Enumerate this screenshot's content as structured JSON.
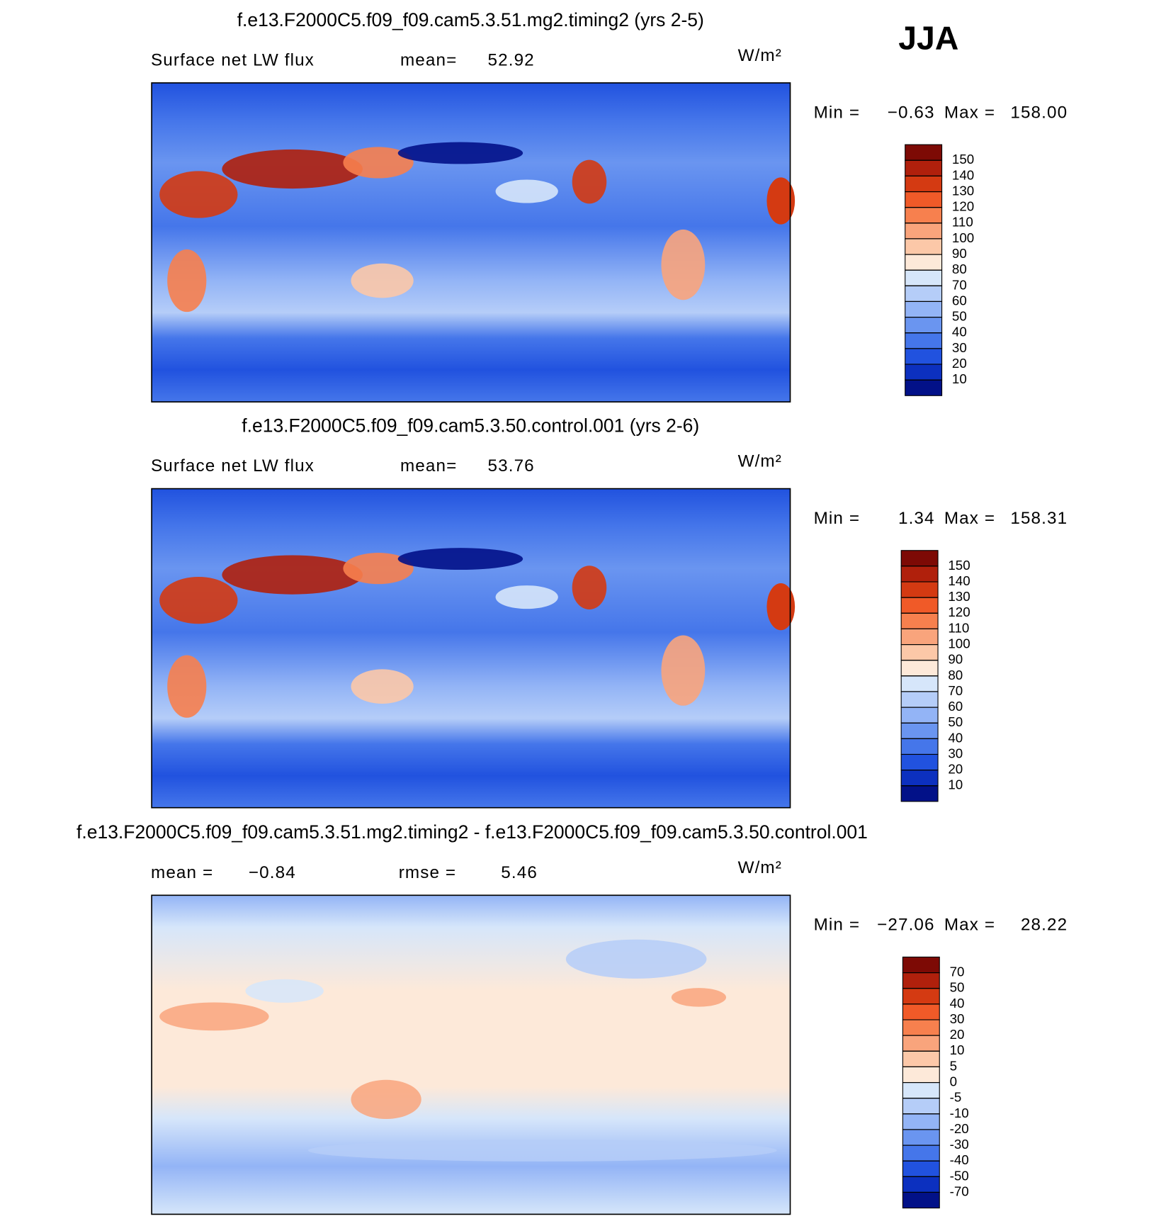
{
  "season": "JJA",
  "panels": [
    {
      "title": "f.e13.F2000C5.f09_f09.cam5.3.51.mg2.timing2 (yrs 2-5)",
      "field": "Surface net LW flux",
      "stats": [
        {
          "label": "mean=",
          "value": "52.92"
        }
      ],
      "units": "W/m²",
      "min_label": "Min =",
      "min": "−0.63",
      "max_label": "Max =",
      "max": "158.00",
      "colorbar": {
        "levels": [
          150,
          140,
          130,
          120,
          110,
          100,
          90,
          80,
          70,
          60,
          50,
          40,
          30,
          20,
          10
        ],
        "colors": [
          "#7d0a05",
          "#b0200c",
          "#d43a12",
          "#f05a28",
          "#f7804e",
          "#f9a47c",
          "#fcc8a8",
          "#fde9d9",
          "#d6e6fa",
          "#b5cdf8",
          "#93b4f6",
          "#6a95f0",
          "#4576ea",
          "#2152df",
          "#0c30bf",
          "#021188"
        ]
      }
    },
    {
      "title": "f.e13.F2000C5.f09_f09.cam5.3.50.control.001 (yrs 2-6)",
      "field": "Surface net LW flux",
      "stats": [
        {
          "label": "mean=",
          "value": "53.76"
        }
      ],
      "units": "W/m²",
      "min_label": "Min =",
      "min": "1.34",
      "max_label": "Max =",
      "max": "158.31",
      "colorbar": {
        "levels": [
          150,
          140,
          130,
          120,
          110,
          100,
          90,
          80,
          70,
          60,
          50,
          40,
          30,
          20,
          10
        ],
        "colors": [
          "#7d0a05",
          "#b0200c",
          "#d43a12",
          "#f05a28",
          "#f7804e",
          "#f9a47c",
          "#fcc8a8",
          "#fde9d9",
          "#d6e6fa",
          "#b5cdf8",
          "#93b4f6",
          "#6a95f0",
          "#4576ea",
          "#2152df",
          "#0c30bf",
          "#021188"
        ]
      }
    },
    {
      "title": "f.e13.F2000C5.f09_f09.cam5.3.51.mg2.timing2 - f.e13.F2000C5.f09_f09.cam5.3.50.control.001",
      "stats": [
        {
          "label": "mean =",
          "value": "−0.84"
        },
        {
          "label": "rmse =",
          "value": "5.46"
        }
      ],
      "units": "W/m²",
      "min_label": "Min =",
      "min": "−27.06",
      "max_label": "Max =",
      "max": "28.22",
      "colorbar": {
        "levels": [
          70,
          50,
          40,
          30,
          20,
          10,
          5,
          0,
          -5,
          -10,
          -20,
          -30,
          -40,
          -50,
          -70
        ],
        "colors": [
          "#7d0a05",
          "#b0200c",
          "#d43a12",
          "#f05a28",
          "#f7804e",
          "#f9a47c",
          "#fcc8a8",
          "#fde9d9",
          "#d6e6fa",
          "#b5cdf8",
          "#93b4f6",
          "#6a95f0",
          "#4576ea",
          "#2152df",
          "#0c30bf",
          "#021188"
        ]
      }
    }
  ]
}
